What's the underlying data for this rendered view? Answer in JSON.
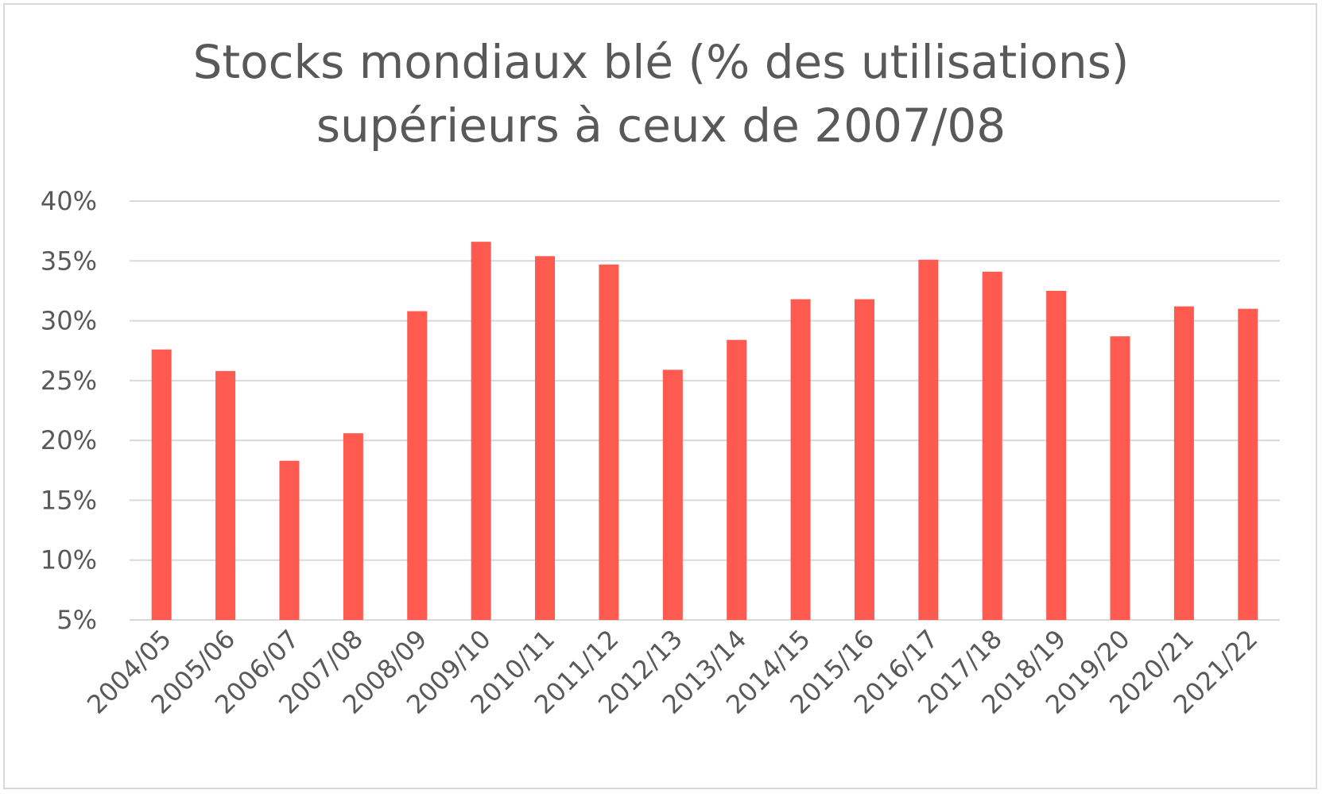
{
  "chart_data": {
    "type": "bar",
    "title_line1": "Stocks mondiaux blé (% des utilisations)",
    "title_line2": "supérieurs à ceux de 2007/08",
    "xlabel": "",
    "ylabel": "",
    "ylim": [
      5,
      40
    ],
    "ytick_values": [
      5,
      10,
      15,
      20,
      25,
      30,
      35,
      40
    ],
    "yticks": [
      "5%",
      "10%",
      "15%",
      "20%",
      "25%",
      "30%",
      "35%",
      "40%"
    ],
    "grid": true,
    "legend": "none",
    "bar_color": "#ff5a4f",
    "categories": [
      "2004/05",
      "2005/06",
      "2006/07",
      "2007/08",
      "2008/09",
      "2009/10",
      "2010/11",
      "2011/12",
      "2012/13",
      "2013/14",
      "2014/15",
      "2015/16",
      "2016/17",
      "2017/18",
      "2018/19",
      "2019/20",
      "2020/21",
      "2021/22"
    ],
    "values": [
      27.6,
      25.8,
      18.3,
      20.6,
      30.8,
      36.6,
      35.4,
      34.7,
      25.9,
      28.4,
      31.8,
      31.8,
      35.1,
      34.1,
      32.5,
      28.7,
      31.2,
      31.0
    ]
  }
}
